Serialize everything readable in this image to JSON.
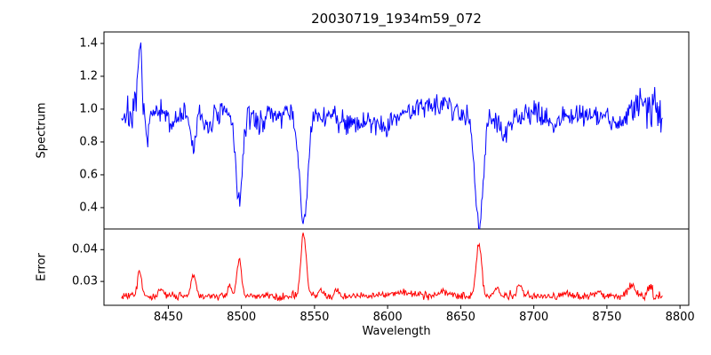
{
  "chart_data": {
    "type": "line",
    "title": "20030719_1934m59_072",
    "xlabel": "Wavelength",
    "xlim": [
      8406,
      8806
    ],
    "x_start": 8418,
    "x_end": 8788,
    "xticks": {
      "values": [
        8450,
        8500,
        8550,
        8600,
        8650,
        8700,
        8750,
        8800
      ],
      "labels": [
        "8450",
        "8500",
        "8550",
        "8600",
        "8650",
        "8700",
        "8750",
        "8800"
      ]
    },
    "subplots": [
      {
        "name": "spectrum",
        "ylabel": "Spectrum",
        "color": "#0000ff",
        "ylim": [
          0.27,
          1.47
        ],
        "yticks": {
          "values": [
            0.4,
            0.6,
            0.8,
            1.0,
            1.2,
            1.4
          ],
          "labels": [
            "0.4",
            "0.6",
            "0.8",
            "1.0",
            "1.2",
            "1.4"
          ]
        },
        "baseline": 0.965,
        "noise_sigma": 0.037,
        "seed": 7,
        "features": [
          {
            "c": 8430.5,
            "a": 0.43,
            "s": 1.2
          },
          {
            "c": 8435,
            "a": -0.1,
            "s": 1.5
          },
          {
            "c": 8452,
            "a": -0.06,
            "s": 2.0
          },
          {
            "c": 8467,
            "a": -0.2,
            "s": 1.8
          },
          {
            "c": 8477,
            "a": -0.07,
            "s": 2.5
          },
          {
            "c": 8498.5,
            "a": -0.54,
            "s": 2.2
          },
          {
            "c": 8512,
            "a": -0.06,
            "s": 2.0
          },
          {
            "c": 8542.5,
            "a": -0.66,
            "s": 2.8
          },
          {
            "c": 8583,
            "a": -0.05,
            "s": 12
          },
          {
            "c": 8598,
            "a": -0.05,
            "s": 3.0
          },
          {
            "c": 8632,
            "a": 0.08,
            "s": 10
          },
          {
            "c": 8662.5,
            "a": -0.66,
            "s": 2.8
          },
          {
            "c": 8680,
            "a": -0.12,
            "s": 4.0
          },
          {
            "c": 8713,
            "a": -0.05,
            "s": 3.0
          },
          {
            "c": 8757,
            "a": -0.08,
            "s": 2.5
          },
          {
            "c": 8775,
            "a": 0.06,
            "s": 6.0
          }
        ],
        "noise_mods": [
          {
            "c": 8782,
            "a": 1.2,
            "s": 10
          },
          {
            "c": 8425,
            "a": 0.6,
            "s": 6
          }
        ]
      },
      {
        "name": "error",
        "ylabel": "Error",
        "color": "#ff0000",
        "ylim": [
          0.0225,
          0.0465
        ],
        "yticks": {
          "values": [
            0.03,
            0.04
          ],
          "labels": [
            "0.03",
            "0.04"
          ]
        },
        "baseline": 0.0254,
        "noise_sigma": 0.0006,
        "seed": 3,
        "features": [
          {
            "c": 8430.5,
            "a": 0.0075,
            "s": 1.4
          },
          {
            "c": 8445,
            "a": 0.002,
            "s": 1.5
          },
          {
            "c": 8467,
            "a": 0.0075,
            "s": 1.6
          },
          {
            "c": 8492,
            "a": 0.0028,
            "s": 1.4
          },
          {
            "c": 8498.5,
            "a": 0.0115,
            "s": 1.6
          },
          {
            "c": 8542.5,
            "a": 0.0195,
            "s": 1.8
          },
          {
            "c": 8554,
            "a": 0.0022,
            "s": 1.6
          },
          {
            "c": 8565,
            "a": 0.0015,
            "s": 1.5
          },
          {
            "c": 8610,
            "a": 0.0012,
            "s": 8.0
          },
          {
            "c": 8640,
            "a": 0.001,
            "s": 5.0
          },
          {
            "c": 8662.5,
            "a": 0.0165,
            "s": 1.8
          },
          {
            "c": 8675,
            "a": 0.0022,
            "s": 1.6
          },
          {
            "c": 8690,
            "a": 0.0035,
            "s": 1.8
          },
          {
            "c": 8722,
            "a": 0.0012,
            "s": 2.0
          },
          {
            "c": 8745,
            "a": 0.0015,
            "s": 2.0
          },
          {
            "c": 8767,
            "a": 0.0038,
            "s": 2.0
          },
          {
            "c": 8779,
            "a": 0.003,
            "s": 1.5
          }
        ],
        "noise_mods": [
          {
            "c": 8782,
            "a": 0.8,
            "s": 8
          }
        ]
      }
    ]
  }
}
